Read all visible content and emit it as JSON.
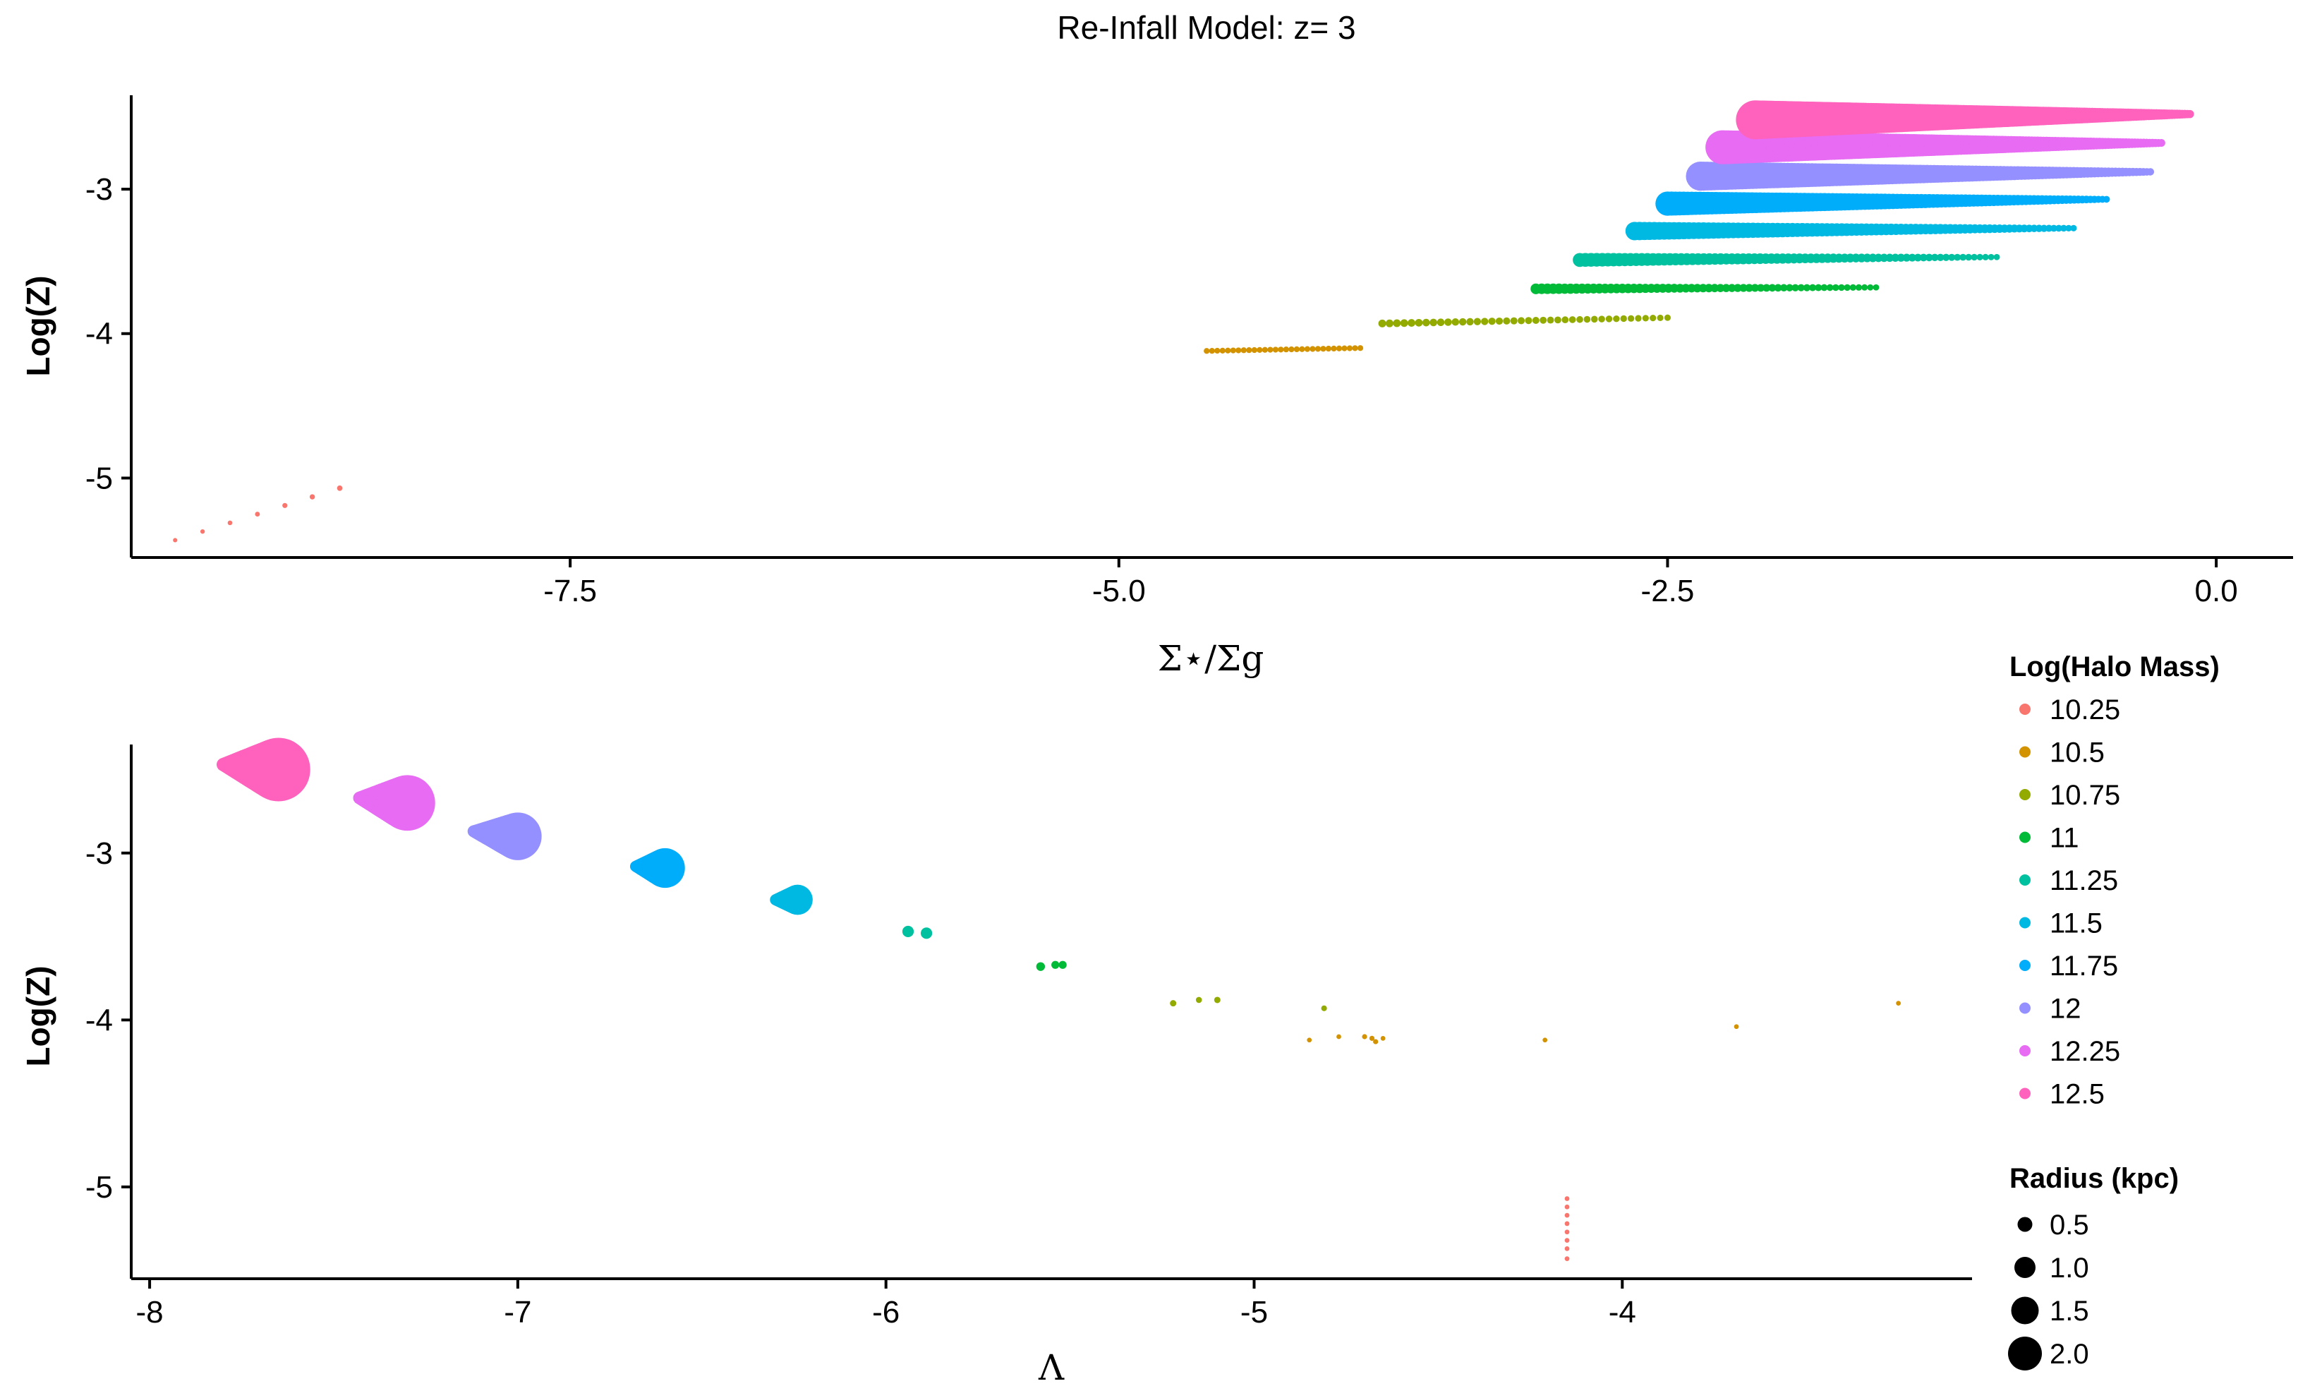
{
  "title": "Re-Infall Model: z= 3",
  "legend": {
    "color_title": "Log(Halo Mass)",
    "size_title": "Radius (kpc)",
    "size_labels": [
      "0.5",
      "1.0",
      "1.5",
      "2.0"
    ],
    "size_values": [
      0.5,
      1.0,
      1.5,
      2.0
    ]
  },
  "chart_data": [
    {
      "type": "scatter",
      "xlabel": "Σ⋆/Σg",
      "ylabel": "Log(Z)",
      "xlim": [
        -9.5,
        0.35
      ],
      "ylim": [
        -5.55,
        -2.35
      ],
      "xticks": [
        -7.5,
        -5.0,
        -2.5,
        0.0
      ],
      "xtick_labels": [
        "-7.5",
        "-5.0",
        "-2.5",
        "0.0"
      ],
      "yticks": [
        -5,
        -4,
        -3
      ],
      "ytick_labels": [
        "-5",
        "-4",
        "-3"
      ],
      "grid": false,
      "legend_position": "right",
      "series": [
        {
          "name": "10.25",
          "color": "#F8766D",
          "y": -5.2,
          "tracks": [
            {
              "x_start": -9.3,
              "x_end": -8.55,
              "y_start": -5.43,
              "y_end": -5.07,
              "n": 7,
              "r_start": 0.22,
              "r_end": 0.28
            }
          ]
        },
        {
          "name": "10.5",
          "color": "#D39200",
          "y": -4.1,
          "tracks": [
            {
              "x_start": -4.6,
              "x_end": -3.9,
              "y_start": -4.12,
              "y_end": -4.1,
              "n": 30,
              "r_start": 0.3,
              "r_end": 0.3
            }
          ]
        },
        {
          "name": "10.75",
          "color": "#93AA00",
          "y": -3.89,
          "tracks": [
            {
              "x_start": -3.8,
              "x_end": -2.5,
              "y_start": -3.93,
              "y_end": -3.89,
              "n": 40,
              "r_start": 0.4,
              "r_end": 0.33
            }
          ]
        },
        {
          "name": "11",
          "color": "#00BA38",
          "y": -3.68,
          "tracks": [
            {
              "x_start": -3.1,
              "x_end": -1.55,
              "y_start": -3.69,
              "y_end": -3.68,
              "n": 60,
              "r_start": 0.55,
              "r_end": 0.32
            }
          ]
        },
        {
          "name": "11.25",
          "color": "#00C19F",
          "y": -3.48,
          "tracks": [
            {
              "x_start": -2.9,
              "x_end": -1.0,
              "y_start": -3.49,
              "y_end": -3.47,
              "n": 75,
              "r_start": 0.72,
              "r_end": 0.32
            }
          ]
        },
        {
          "name": "11.5",
          "color": "#00B9E3",
          "y": -3.28,
          "tracks": [
            {
              "x_start": -2.65,
              "x_end": -0.65,
              "y_start": -3.29,
              "y_end": -3.27,
              "n": 90,
              "r_start": 0.95,
              "r_end": 0.33
            }
          ]
        },
        {
          "name": "11.75",
          "color": "#00ADFA",
          "y": -3.09,
          "tracks": [
            {
              "x_start": -2.5,
              "x_end": -0.5,
              "y_start": -3.1,
              "y_end": -3.07,
              "n": 110,
              "r_start": 1.25,
              "r_end": 0.35
            }
          ]
        },
        {
          "name": "12",
          "color": "#9590FF",
          "y": -2.9,
          "tracks": [
            {
              "x_start": -2.35,
              "x_end": -0.3,
              "y_start": -2.91,
              "y_end": -2.88,
              "n": 130,
              "r_start": 1.5,
              "r_end": 0.38
            }
          ]
        },
        {
          "name": "12.25",
          "color": "#E76BF3",
          "y": -2.7,
          "tracks": [
            {
              "x_start": -2.25,
              "x_end": -0.25,
              "y_start": -2.71,
              "y_end": -2.68,
              "n": 150,
              "r_start": 1.75,
              "r_end": 0.4
            }
          ]
        },
        {
          "name": "12.5",
          "color": "#FF62BC",
          "y": -2.5,
          "tracks": [
            {
              "x_start": -2.1,
              "x_end": -0.12,
              "y_start": -2.52,
              "y_end": -2.48,
              "n": 170,
              "r_start": 2.0,
              "r_end": 0.42
            }
          ]
        }
      ]
    },
    {
      "type": "scatter",
      "xlabel": "Λ",
      "ylabel": "Log(Z)",
      "xlim": [
        -8.05,
        -3.05
      ],
      "ylim": [
        -5.55,
        -2.35
      ],
      "xticks": [
        -8,
        -7,
        -6,
        -5,
        -4
      ],
      "xtick_labels": [
        "-8",
        "-7",
        "-6",
        "-5",
        "-4"
      ],
      "yticks": [
        -5,
        -4,
        -3
      ],
      "ytick_labels": [
        "-5",
        "-4",
        "-3"
      ],
      "grid": false,
      "legend_position": "right",
      "series": [
        {
          "name": "10.25",
          "color": "#F8766D",
          "points": [
            [
              -4.15,
              -5.07,
              0.3
            ],
            [
              -4.15,
              -5.12,
              0.3
            ],
            [
              -4.15,
              -5.17,
              0.3
            ],
            [
              -4.15,
              -5.22,
              0.3
            ],
            [
              -4.15,
              -5.27,
              0.3
            ],
            [
              -4.15,
              -5.32,
              0.3
            ],
            [
              -4.15,
              -5.37,
              0.3
            ],
            [
              -4.15,
              -5.43,
              0.3
            ]
          ]
        },
        {
          "name": "10.5",
          "color": "#D39200",
          "points": [
            [
              -4.85,
              -4.12,
              0.3
            ],
            [
              -4.77,
              -4.1,
              0.3
            ],
            [
              -4.7,
              -4.1,
              0.32
            ],
            [
              -4.68,
              -4.11,
              0.32
            ],
            [
              -4.67,
              -4.13,
              0.32
            ],
            [
              -4.65,
              -4.11,
              0.3
            ],
            [
              -4.21,
              -4.12,
              0.3
            ],
            [
              -3.69,
              -4.04,
              0.3
            ],
            [
              -3.25,
              -3.9,
              0.3
            ]
          ]
        },
        {
          "name": "10.75",
          "color": "#93AA00",
          "points": [
            [
              -5.22,
              -3.9,
              0.4
            ],
            [
              -5.15,
              -3.88,
              0.38
            ],
            [
              -5.1,
              -3.88,
              0.4
            ],
            [
              -4.81,
              -3.93,
              0.36
            ]
          ]
        },
        {
          "name": "11",
          "color": "#00BA38",
          "points": [
            [
              -5.58,
              -3.68,
              0.55
            ],
            [
              -5.54,
              -3.67,
              0.5
            ],
            [
              -5.52,
              -3.67,
              0.5
            ]
          ]
        },
        {
          "name": "11.25",
          "color": "#00C19F",
          "points": [
            [
              -5.94,
              -3.47,
              0.72
            ],
            [
              -5.89,
              -3.48,
              0.72
            ]
          ]
        },
        {
          "name": "11.5",
          "color": "#00B9E3",
          "blobs": [
            {
              "x_start": -6.3,
              "x_end": -6.24,
              "y_start": -3.28,
              "y_end": -3.28,
              "r_start": 0.35,
              "r_end": 0.95
            }
          ]
        },
        {
          "name": "11.75",
          "color": "#00ADFA",
          "blobs": [
            {
              "x_start": -6.68,
              "x_end": -6.6,
              "y_start": -3.08,
              "y_end": -3.09,
              "r_start": 0.35,
              "r_end": 1.25
            }
          ]
        },
        {
          "name": "12",
          "color": "#9590FF",
          "blobs": [
            {
              "x_start": -7.12,
              "x_end": -7.0,
              "y_start": -2.87,
              "y_end": -2.9,
              "r_start": 0.38,
              "r_end": 1.5
            }
          ]
        },
        {
          "name": "12.25",
          "color": "#E76BF3",
          "blobs": [
            {
              "x_start": -7.43,
              "x_end": -7.3,
              "y_start": -2.67,
              "y_end": -2.7,
              "r_start": 0.4,
              "r_end": 1.75
            }
          ]
        },
        {
          "name": "12.5",
          "color": "#FF62BC",
          "blobs": [
            {
              "x_start": -7.8,
              "x_end": -7.65,
              "y_start": -2.47,
              "y_end": -2.5,
              "r_start": 0.42,
              "r_end": 2.0
            }
          ]
        }
      ]
    }
  ]
}
